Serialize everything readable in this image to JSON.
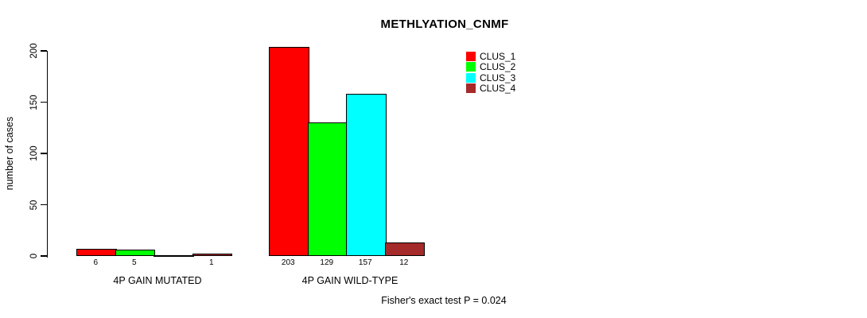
{
  "header": {
    "title": "METHLYATION_CNMF"
  },
  "chart_data": {
    "type": "bar",
    "title": "METHLYATION_CNMF",
    "xlabel": "",
    "ylabel": "number of cases",
    "ylim": [
      0,
      200
    ],
    "yticks": [
      0,
      50,
      100,
      150,
      200
    ],
    "grid": false,
    "legend_position": "top-right",
    "axis_color": "#000000",
    "bar_border_color": "#000000",
    "series": [
      {
        "name": "CLUS_1",
        "color": "#FF0000"
      },
      {
        "name": "CLUS_2",
        "color": "#00FF00"
      },
      {
        "name": "CLUS_3",
        "color": "#00FFFF"
      },
      {
        "name": "CLUS_4",
        "color": "#A52A2A"
      }
    ],
    "categories": [
      "4P GAIN MUTATED",
      "4P GAIN WILD-TYPE"
    ],
    "groups": [
      {
        "label": "4P GAIN MUTATED",
        "values": [
          6,
          5,
          0,
          1
        ],
        "value_labels": [
          "6",
          "5",
          "",
          "1"
        ]
      },
      {
        "label": "4P GAIN WILD-TYPE",
        "values": [
          203,
          129,
          157,
          12
        ],
        "value_labels": [
          "203",
          "129",
          "157",
          "12"
        ]
      }
    ],
    "annotation": "Fisher's exact test P = 0.024"
  }
}
